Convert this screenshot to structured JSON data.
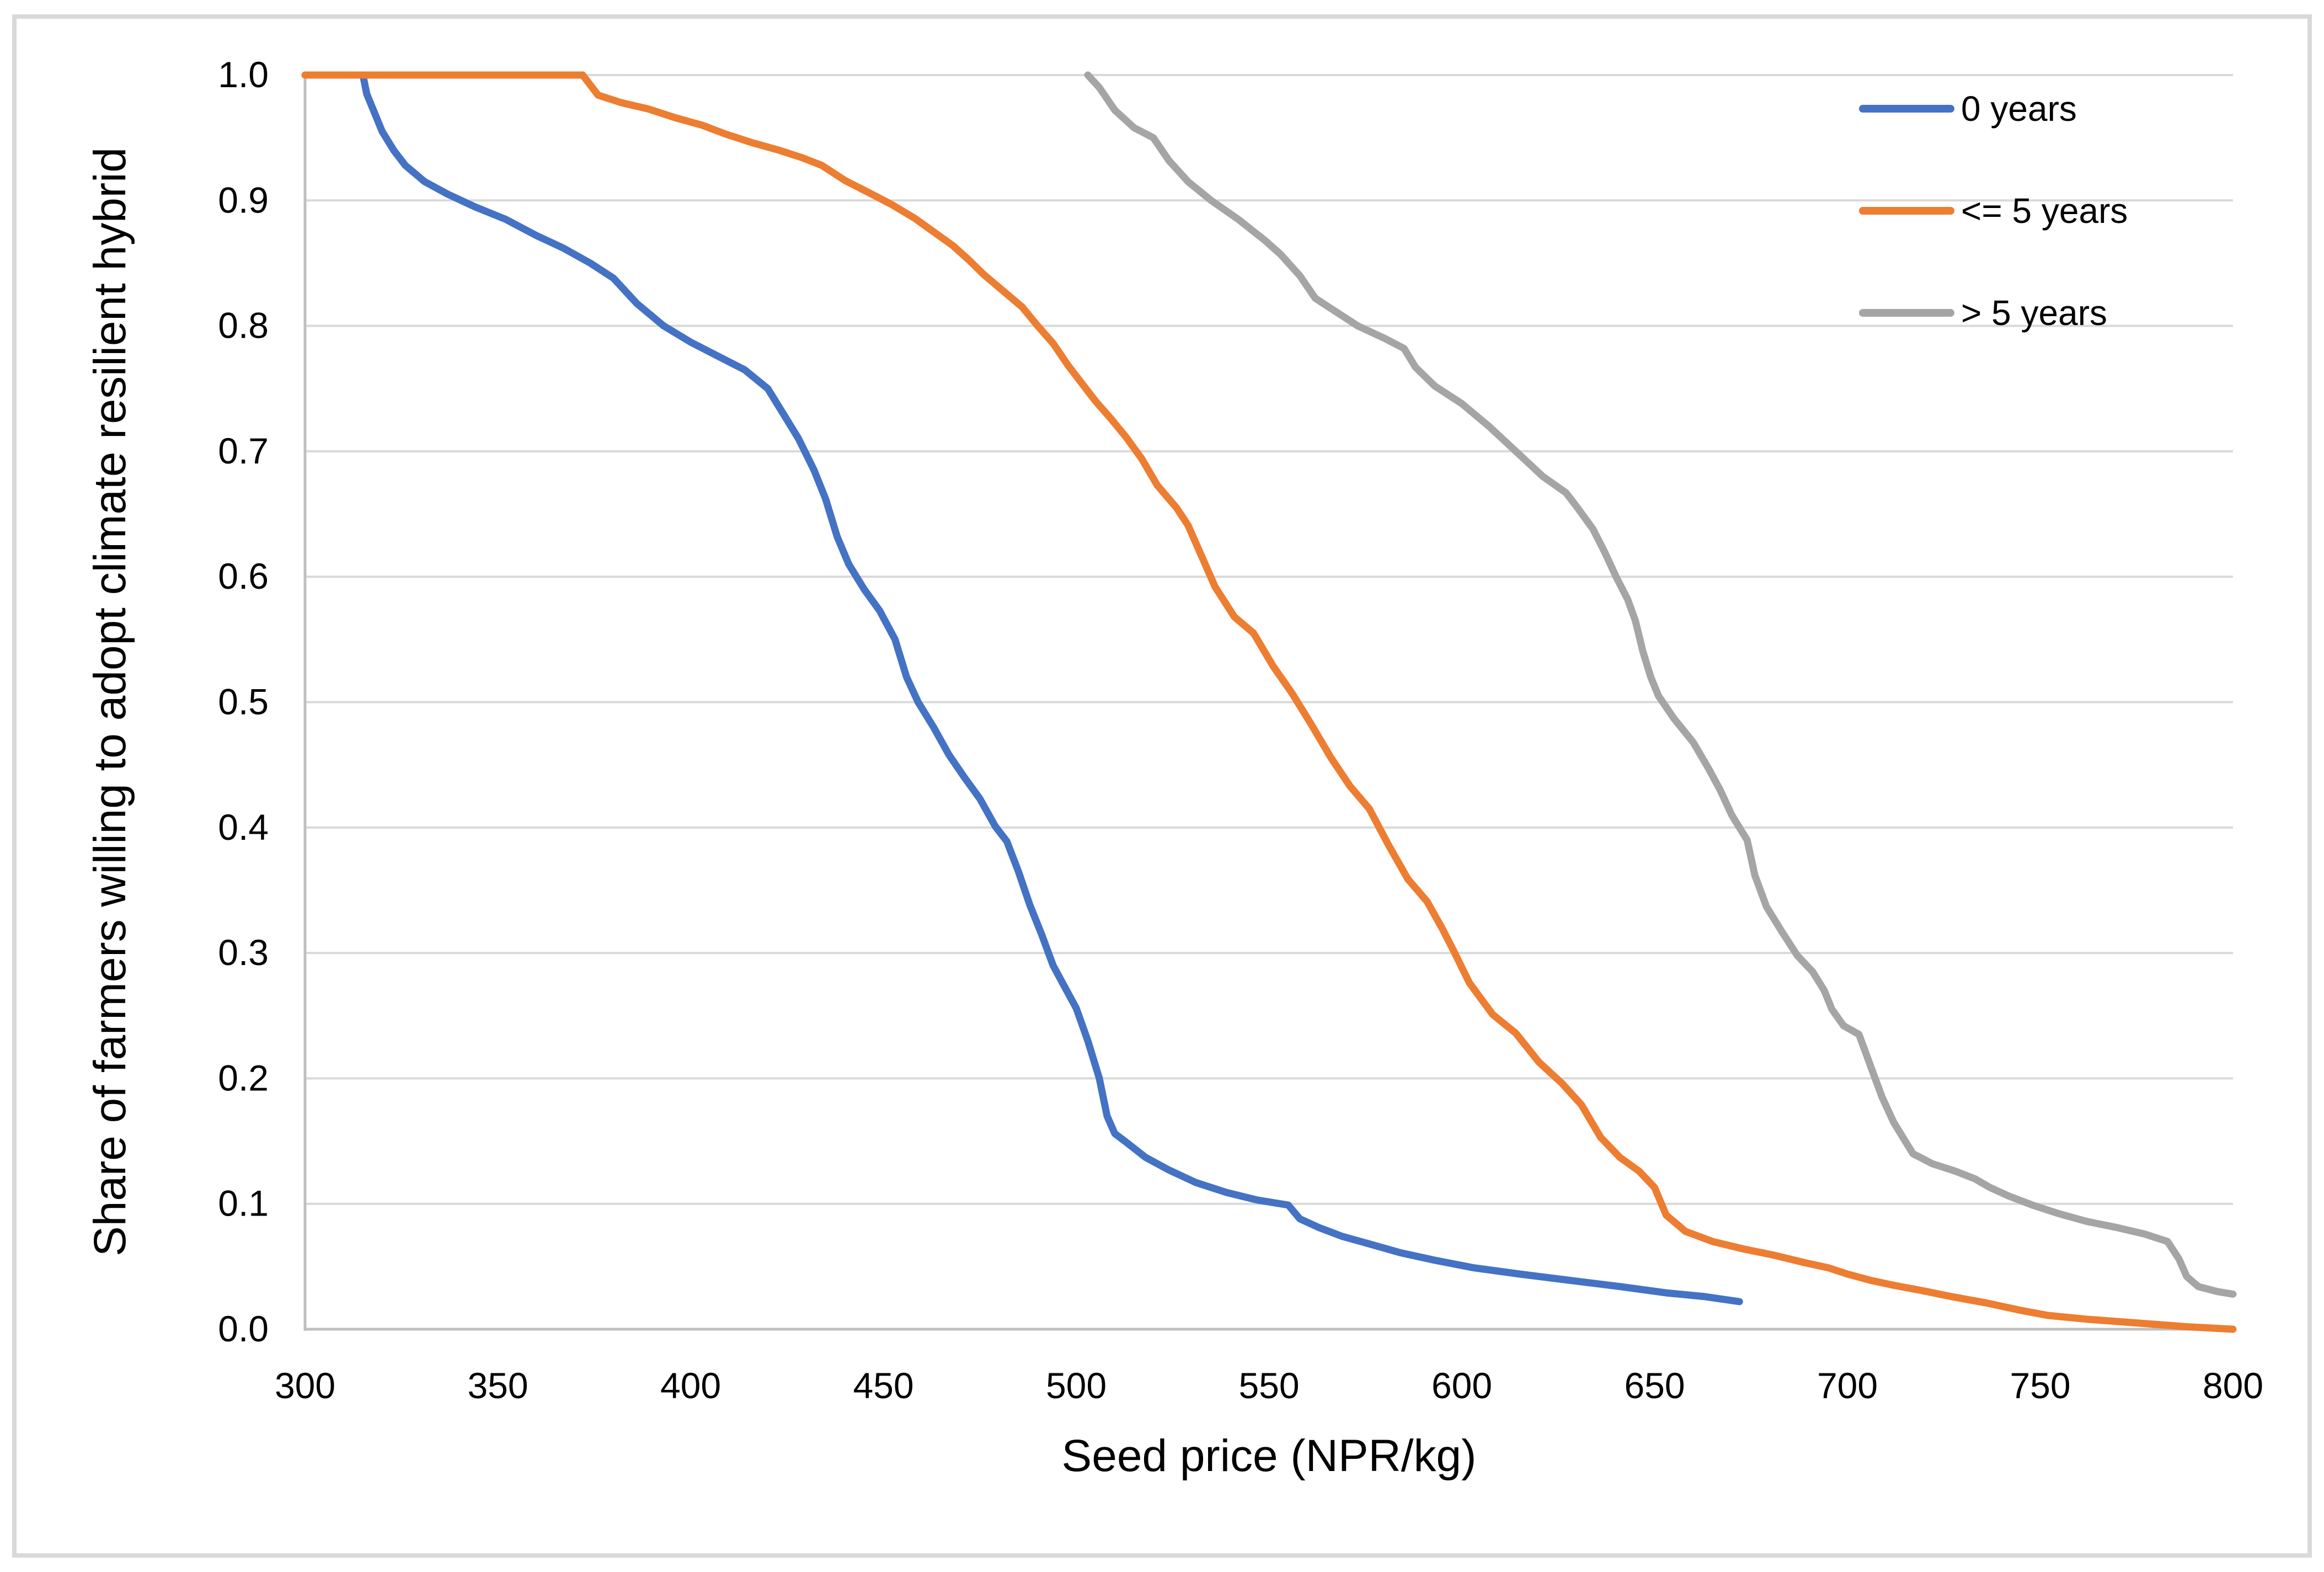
{
  "figure": {
    "background": "#ffffff",
    "border_color": "#d9d9d9"
  },
  "chart_data": {
    "type": "line",
    "title": "",
    "xlabel": "Seed price (NPR/kg)",
    "ylabel": "Share of farmers willing to adopt climate resilient hybrid",
    "xlim": [
      300,
      800
    ],
    "ylim": [
      0.0,
      1.0
    ],
    "x_ticks": [
      "300",
      "350",
      "400",
      "450",
      "500",
      "550",
      "600",
      "650",
      "700",
      "750",
      "800"
    ],
    "y_ticks": [
      "0.0",
      "0.1",
      "0.2",
      "0.3",
      "0.4",
      "0.5",
      "0.6",
      "0.7",
      "0.8",
      "0.9",
      "1.0"
    ],
    "grid": "horizontal",
    "gridline_color": "#d9d9d9",
    "axis_color": "#bfbfbf",
    "legend_position": "top-right-inside",
    "series": [
      {
        "name": "0 years",
        "color": "#4472C4",
        "points": [
          [
            315,
            1.0
          ],
          [
            316,
            0.985
          ],
          [
            318,
            0.97
          ],
          [
            320,
            0.955
          ],
          [
            323,
            0.94
          ],
          [
            326,
            0.928
          ],
          [
            331,
            0.915
          ],
          [
            337,
            0.905
          ],
          [
            344,
            0.895
          ],
          [
            352,
            0.885
          ],
          [
            360,
            0.872
          ],
          [
            367,
            0.862
          ],
          [
            374,
            0.85
          ],
          [
            380,
            0.838
          ],
          [
            386,
            0.818
          ],
          [
            393,
            0.8
          ],
          [
            400,
            0.787
          ],
          [
            407,
            0.776
          ],
          [
            414,
            0.765
          ],
          [
            420,
            0.75
          ],
          [
            424,
            0.73
          ],
          [
            428,
            0.71
          ],
          [
            432,
            0.685
          ],
          [
            435,
            0.662
          ],
          [
            438,
            0.632
          ],
          [
            441,
            0.61
          ],
          [
            445,
            0.59
          ],
          [
            449,
            0.573
          ],
          [
            453,
            0.55
          ],
          [
            456,
            0.52
          ],
          [
            459,
            0.5
          ],
          [
            463,
            0.48
          ],
          [
            467,
            0.458
          ],
          [
            471,
            0.44
          ],
          [
            475,
            0.423
          ],
          [
            479,
            0.401
          ],
          [
            482,
            0.389
          ],
          [
            485,
            0.365
          ],
          [
            488,
            0.338
          ],
          [
            491,
            0.315
          ],
          [
            494,
            0.29
          ],
          [
            497,
            0.273
          ],
          [
            500,
            0.256
          ],
          [
            503,
            0.23
          ],
          [
            506,
            0.2
          ],
          [
            508,
            0.17
          ],
          [
            510,
            0.156
          ],
          [
            513,
            0.149
          ],
          [
            518,
            0.137
          ],
          [
            524,
            0.127
          ],
          [
            531,
            0.117
          ],
          [
            539,
            0.109
          ],
          [
            547,
            0.103
          ],
          [
            555,
            0.099
          ],
          [
            558,
            0.088
          ],
          [
            563,
            0.081
          ],
          [
            569,
            0.074
          ],
          [
            576,
            0.068
          ],
          [
            584,
            0.061
          ],
          [
            593,
            0.055
          ],
          [
            603,
            0.049
          ],
          [
            615,
            0.044
          ],
          [
            628,
            0.039
          ],
          [
            641,
            0.034
          ],
          [
            653,
            0.029
          ],
          [
            663,
            0.026
          ],
          [
            672,
            0.022
          ]
        ]
      },
      {
        "name": "<= 5 years",
        "color": "#ED7D31",
        "points": [
          [
            300,
            1.0
          ],
          [
            372,
            1.0
          ],
          [
            376,
            0.984
          ],
          [
            382,
            0.978
          ],
          [
            389,
            0.973
          ],
          [
            396,
            0.966
          ],
          [
            403,
            0.96
          ],
          [
            409,
            0.953
          ],
          [
            416,
            0.946
          ],
          [
            423,
            0.94
          ],
          [
            429,
            0.934
          ],
          [
            434,
            0.928
          ],
          [
            440,
            0.916
          ],
          [
            447,
            0.905
          ],
          [
            452,
            0.897
          ],
          [
            458,
            0.886
          ],
          [
            463,
            0.875
          ],
          [
            468,
            0.864
          ],
          [
            472,
            0.853
          ],
          [
            476,
            0.841
          ],
          [
            481,
            0.828
          ],
          [
            486,
            0.815
          ],
          [
            490,
            0.8
          ],
          [
            494,
            0.786
          ],
          [
            498,
            0.768
          ],
          [
            502,
            0.752
          ],
          [
            505,
            0.74
          ],
          [
            509,
            0.726
          ],
          [
            513,
            0.711
          ],
          [
            517,
            0.694
          ],
          [
            521,
            0.673
          ],
          [
            526,
            0.655
          ],
          [
            529,
            0.641
          ],
          [
            532,
            0.62
          ],
          [
            536,
            0.592
          ],
          [
            541,
            0.568
          ],
          [
            546,
            0.555
          ],
          [
            551,
            0.529
          ],
          [
            556,
            0.507
          ],
          [
            561,
            0.482
          ],
          [
            566,
            0.456
          ],
          [
            571,
            0.433
          ],
          [
            576,
            0.415
          ],
          [
            581,
            0.386
          ],
          [
            586,
            0.359
          ],
          [
            591,
            0.341
          ],
          [
            595,
            0.319
          ],
          [
            598,
            0.301
          ],
          [
            602,
            0.276
          ],
          [
            608,
            0.251
          ],
          [
            614,
            0.236
          ],
          [
            620,
            0.213
          ],
          [
            626,
            0.196
          ],
          [
            631,
            0.179
          ],
          [
            636,
            0.153
          ],
          [
            641,
            0.137
          ],
          [
            646,
            0.126
          ],
          [
            650,
            0.113
          ],
          [
            653,
            0.091
          ],
          [
            658,
            0.078
          ],
          [
            665,
            0.07
          ],
          [
            673,
            0.064
          ],
          [
            681,
            0.059
          ],
          [
            689,
            0.053
          ],
          [
            695,
            0.049
          ],
          [
            700,
            0.044
          ],
          [
            706,
            0.039
          ],
          [
            712,
            0.035
          ],
          [
            719,
            0.031
          ],
          [
            727,
            0.026
          ],
          [
            736,
            0.021
          ],
          [
            745,
            0.015
          ],
          [
            752,
            0.011
          ],
          [
            762,
            0.008
          ],
          [
            775,
            0.005
          ],
          [
            788,
            0.002
          ],
          [
            800,
            0.0
          ]
        ]
      },
      {
        "name": "> 5 years",
        "color": "#A5A5A5",
        "points": [
          [
            503,
            1.0
          ],
          [
            506,
            0.99
          ],
          [
            510,
            0.972
          ],
          [
            515,
            0.958
          ],
          [
            520,
            0.95
          ],
          [
            524,
            0.932
          ],
          [
            529,
            0.915
          ],
          [
            535,
            0.9
          ],
          [
            542,
            0.885
          ],
          [
            549,
            0.868
          ],
          [
            553,
            0.857
          ],
          [
            558,
            0.84
          ],
          [
            562,
            0.822
          ],
          [
            567,
            0.812
          ],
          [
            573,
            0.8
          ],
          [
            580,
            0.79
          ],
          [
            585,
            0.782
          ],
          [
            588,
            0.767
          ],
          [
            593,
            0.752
          ],
          [
            600,
            0.738
          ],
          [
            607,
            0.72
          ],
          [
            614,
            0.7
          ],
          [
            621,
            0.68
          ],
          [
            627,
            0.667
          ],
          [
            630,
            0.655
          ],
          [
            634,
            0.638
          ],
          [
            637,
            0.62
          ],
          [
            640,
            0.6
          ],
          [
            643,
            0.582
          ],
          [
            645,
            0.565
          ],
          [
            647,
            0.54
          ],
          [
            649,
            0.52
          ],
          [
            651,
            0.505
          ],
          [
            655,
            0.487
          ],
          [
            660,
            0.468
          ],
          [
            664,
            0.447
          ],
          [
            667,
            0.43
          ],
          [
            670,
            0.41
          ],
          [
            674,
            0.39
          ],
          [
            676,
            0.362
          ],
          [
            679,
            0.337
          ],
          [
            683,
            0.317
          ],
          [
            687,
            0.298
          ],
          [
            691,
            0.285
          ],
          [
            694,
            0.27
          ],
          [
            696,
            0.255
          ],
          [
            699,
            0.242
          ],
          [
            703,
            0.235
          ],
          [
            706,
            0.21
          ],
          [
            709,
            0.185
          ],
          [
            712,
            0.165
          ],
          [
            715,
            0.15
          ],
          [
            717,
            0.14
          ],
          [
            722,
            0.132
          ],
          [
            728,
            0.126
          ],
          [
            733,
            0.12
          ],
          [
            737,
            0.113
          ],
          [
            742,
            0.106
          ],
          [
            748,
            0.099
          ],
          [
            755,
            0.092
          ],
          [
            762,
            0.086
          ],
          [
            770,
            0.081
          ],
          [
            777,
            0.076
          ],
          [
            783,
            0.07
          ],
          [
            786,
            0.056
          ],
          [
            788,
            0.042
          ],
          [
            791,
            0.034
          ],
          [
            796,
            0.03
          ],
          [
            800,
            0.028
          ]
        ]
      }
    ]
  }
}
